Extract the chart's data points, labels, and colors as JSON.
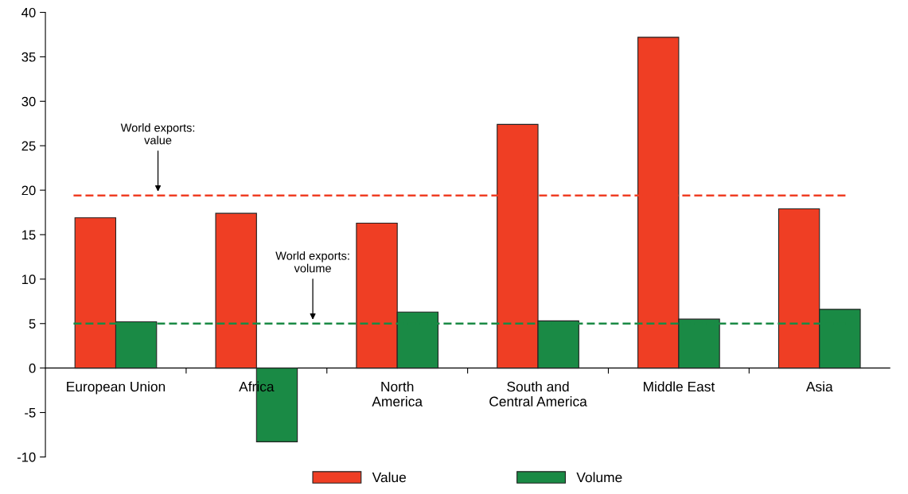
{
  "chart_data": {
    "type": "bar",
    "categories": [
      "European Union",
      "Africa",
      "North\nAmerica",
      "South and\nCentral America",
      "Middle East",
      "Asia"
    ],
    "series": [
      {
        "name": "Value",
        "color": "#ef3e24",
        "values": [
          16.9,
          17.4,
          16.3,
          27.4,
          37.2,
          17.9
        ]
      },
      {
        "name": "Volume",
        "color": "#1a8a45",
        "values": [
          5.2,
          -8.3,
          6.3,
          5.3,
          5.5,
          6.6
        ]
      }
    ],
    "ylim": [
      -10,
      40
    ],
    "yticks": [
      -10,
      -5,
      0,
      5,
      10,
      15,
      20,
      25,
      30,
      35,
      40
    ],
    "ref_lines": [
      {
        "axis": "y",
        "value": 19.4,
        "label": "World exports:\nvalue",
        "color": "#ef3e24",
        "line_style": "dashed"
      },
      {
        "axis": "y",
        "value": 5.0,
        "label": "World exports:\nvolume",
        "color": "#1a8a45",
        "line_style": "dashed"
      }
    ],
    "grid": false,
    "legend": "bottom"
  }
}
